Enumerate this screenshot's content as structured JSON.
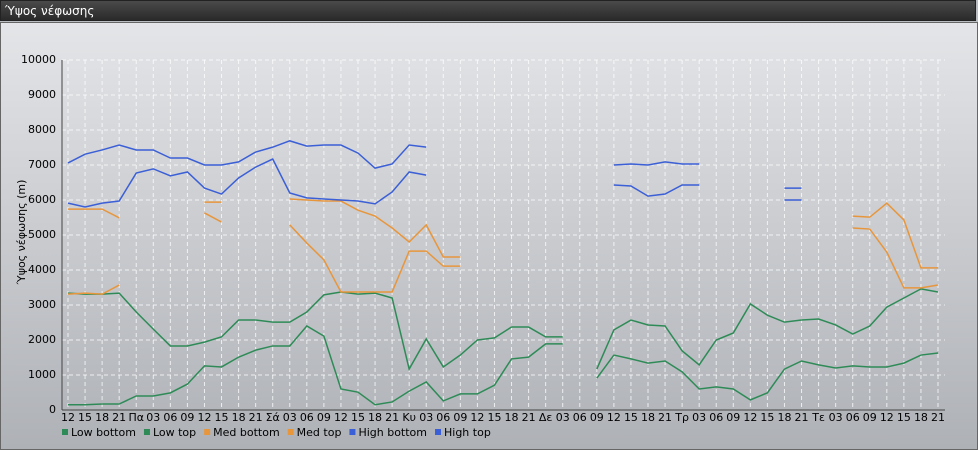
{
  "chart_data": {
    "type": "line",
    "title": "Ύψος νέφωσης",
    "ylabel": "Ύψος νέφωσης (m)",
    "categories": [
      "12",
      "15",
      "18",
      "21",
      "Πα",
      "03",
      "06",
      "09",
      "12",
      "15",
      "18",
      "21",
      "Σά",
      "03",
      "06",
      "09",
      "12",
      "15",
      "18",
      "21",
      "Κυ",
      "03",
      "06",
      "09",
      "12",
      "15",
      "18",
      "21",
      "Δε",
      "03",
      "06",
      "09",
      "12",
      "15",
      "18",
      "21",
      "Τρ",
      "03",
      "06",
      "09",
      "12",
      "15",
      "18",
      "21",
      "Τε",
      "03",
      "06",
      "09",
      "12",
      "15",
      "18",
      "21"
    ],
    "ylim": [
      0,
      10000
    ],
    "yticks": [
      0,
      1000,
      2000,
      3000,
      4000,
      5000,
      6000,
      7000,
      8000,
      9000,
      10000
    ],
    "grid": true,
    "series": [
      {
        "name": "Low bottom",
        "color": "#2e8b57",
        "values": [
          150,
          150,
          170,
          170,
          400,
          400,
          490,
          740,
          1260,
          1230,
          1510,
          1710,
          1830,
          1830,
          2400,
          2110,
          600,
          510,
          150,
          230,
          540,
          800,
          260,
          460,
          460,
          710,
          1460,
          1510,
          1890,
          1890,
          null,
          910,
          1570,
          1460,
          1340,
          1400,
          1090,
          600,
          660,
          600,
          290,
          490,
          1170,
          1400,
          1290,
          1200,
          1260,
          1230,
          1230,
          1340,
          1570,
          1630
        ]
      },
      {
        "name": "Low top",
        "color": "#2e8b57",
        "values": [
          3340,
          3310,
          3310,
          3340,
          2800,
          2310,
          1830,
          1830,
          1940,
          2090,
          2570,
          2570,
          2510,
          2510,
          2800,
          3290,
          3370,
          3310,
          3340,
          3200,
          1170,
          2030,
          1230,
          1570,
          2000,
          2060,
          2370,
          2370,
          2090,
          2090,
          null,
          1170,
          2290,
          2570,
          2430,
          2400,
          1690,
          1290,
          2000,
          2200,
          3030,
          2710,
          2510,
          2570,
          2600,
          2430,
          2170,
          2400,
          2940,
          3200,
          3460,
          3370
        ]
      },
      {
        "name": "Med bottom",
        "color": "#e8963c",
        "values": [
          3310,
          3340,
          3310,
          3570,
          null,
          null,
          null,
          null,
          5630,
          5370,
          null,
          null,
          null,
          5290,
          4770,
          4290,
          3370,
          3370,
          3370,
          3370,
          4540,
          4540,
          4110,
          4110,
          null,
          null,
          null,
          null,
          null,
          null,
          null,
          null,
          null,
          null,
          null,
          null,
          null,
          null,
          null,
          null,
          null,
          null,
          null,
          null,
          null,
          null,
          5200,
          5170,
          4510,
          3490,
          3490,
          3570
        ]
      },
      {
        "name": "Med top",
        "color": "#e8963c",
        "values": [
          5740,
          5740,
          5740,
          5490,
          null,
          null,
          null,
          null,
          5940,
          5940,
          null,
          null,
          null,
          6030,
          6000,
          5970,
          5970,
          5710,
          5540,
          5200,
          4800,
          5290,
          4370,
          4370,
          null,
          null,
          null,
          null,
          null,
          null,
          null,
          null,
          null,
          null,
          null,
          null,
          null,
          null,
          null,
          null,
          null,
          null,
          null,
          null,
          null,
          null,
          5540,
          5510,
          5910,
          5430,
          4060,
          4060
        ]
      },
      {
        "name": "High bottom",
        "color": "#3b5fd6",
        "values": [
          5910,
          5800,
          5910,
          5970,
          6770,
          6890,
          6690,
          6800,
          6340,
          6170,
          6630,
          6940,
          7170,
          6200,
          6060,
          6030,
          6000,
          5970,
          5890,
          6230,
          6800,
          6710,
          null,
          null,
          null,
          null,
          null,
          null,
          null,
          null,
          null,
          null,
          6430,
          6400,
          6110,
          6170,
          6430,
          6430,
          null,
          null,
          null,
          null,
          6000,
          6000,
          null,
          null,
          null,
          null,
          null,
          null,
          null,
          null
        ]
      },
      {
        "name": "High top",
        "color": "#3b5fd6",
        "values": [
          7060,
          7310,
          7430,
          7570,
          7430,
          7430,
          7200,
          7200,
          7000,
          7000,
          7090,
          7370,
          7510,
          7690,
          7540,
          7570,
          7570,
          7340,
          6910,
          7030,
          7570,
          7510,
          null,
          null,
          null,
          null,
          null,
          null,
          null,
          null,
          null,
          null,
          7000,
          7030,
          7000,
          7090,
          7030,
          7030,
          null,
          null,
          null,
          null,
          6340,
          6340,
          null,
          null,
          null,
          null,
          null,
          null,
          null,
          null
        ]
      }
    ]
  }
}
